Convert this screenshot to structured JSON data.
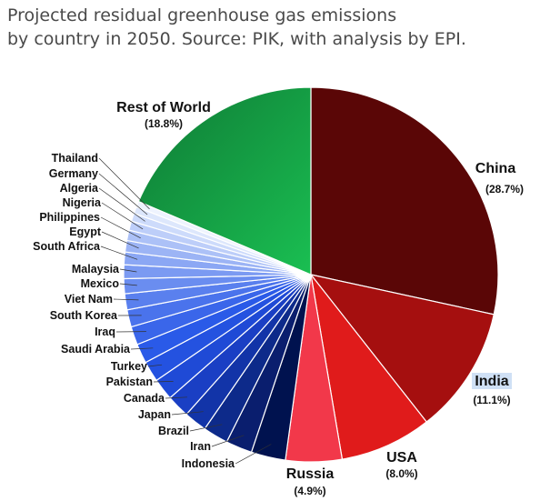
{
  "title": {
    "line1": "Projected residual greenhouse gas emissions",
    "line2": "by country in 2050. Source: PIK, with analysis by EPI."
  },
  "chart_data": {
    "type": "pie",
    "slices": [
      {
        "label": "China",
        "value": 28.7,
        "pct_label": "(28.7%)",
        "color": "#5a0606"
      },
      {
        "label": "India",
        "value": 11.1,
        "pct_label": "(11.1%)",
        "color": "#a50f0f"
      },
      {
        "label": "USA",
        "value": 8.0,
        "pct_label": "(8.0%)",
        "color": "#e01b1b"
      },
      {
        "label": "Russia",
        "value": 4.9,
        "pct_label": "(4.9%)",
        "color": "#f2384a"
      },
      {
        "label": "Indonesia",
        "value": 3.0,
        "color": "#00124f"
      },
      {
        "label": "Iran",
        "value": 2.3,
        "color": "#0a1e6e"
      },
      {
        "label": "Brazil",
        "value": 2.2,
        "color": "#0d2a8a"
      },
      {
        "label": "Japan",
        "value": 2.0,
        "color": "#1234a8"
      },
      {
        "label": "Canada",
        "value": 2.0,
        "color": "#1a3fc4"
      },
      {
        "label": "Pakistan",
        "value": 1.9,
        "color": "#1f4ad6"
      },
      {
        "label": "Turkey",
        "value": 1.8,
        "color": "#2452e0"
      },
      {
        "label": "Saudi Arabia",
        "value": 1.7,
        "color": "#2a5ae8"
      },
      {
        "label": "Iraq",
        "value": 1.6,
        "color": "#3a66ea"
      },
      {
        "label": "South Korea",
        "value": 1.5,
        "color": "#4a73ec"
      },
      {
        "label": "Viet Nam",
        "value": 1.4,
        "color": "#5a80ee"
      },
      {
        "label": "Mexico",
        "value": 1.3,
        "color": "#6a8df0"
      },
      {
        "label": "Malaysia",
        "value": 1.2,
        "color": "#7b9af2"
      },
      {
        "label": "South Africa",
        "value": 1.1,
        "color": "#8ba7f4"
      },
      {
        "label": "Egypt",
        "value": 1.0,
        "color": "#9cb4f5"
      },
      {
        "label": "Philippines",
        "value": 0.9,
        "color": "#acc1f7"
      },
      {
        "label": "Nigeria",
        "value": 0.8,
        "color": "#bdcef9"
      },
      {
        "label": "Algeria",
        "value": 0.7,
        "color": "#cddbfb"
      },
      {
        "label": "Germany",
        "value": 0.6,
        "color": "#dde7fc"
      },
      {
        "label": "Thailand",
        "value": 0.5,
        "color": "#eef3fe"
      },
      {
        "label": "Rest of World",
        "value": 18.8,
        "pct_label": "(18.8%)",
        "color": "#0f8a3c",
        "color_light": "#18b34c"
      }
    ]
  }
}
